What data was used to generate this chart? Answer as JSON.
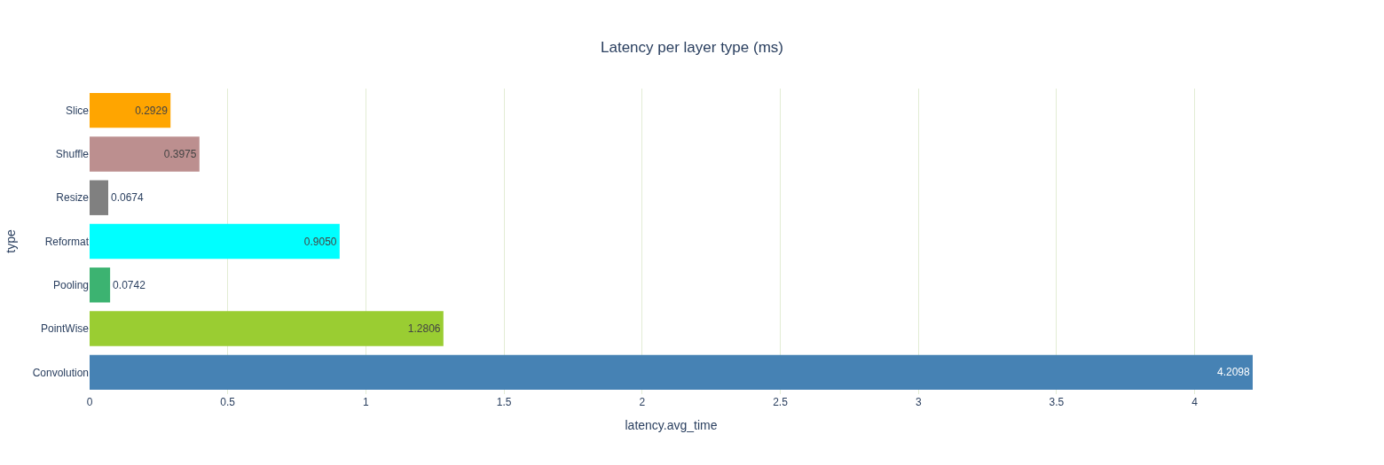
{
  "chart_data": {
    "type": "bar",
    "orientation": "horizontal",
    "title": "Latency per layer type (ms)",
    "xlabel": "latency.avg_time",
    "ylabel": "type",
    "categories": [
      "Slice",
      "Shuffle",
      "Resize",
      "Reformat",
      "Pooling",
      "PointWise",
      "Convolution"
    ],
    "values": [
      0.2929,
      0.3975,
      0.0674,
      0.905,
      0.0742,
      1.2806,
      4.2098
    ],
    "value_labels": [
      "0.2929",
      "0.3975",
      "0.0674",
      "0.9050",
      "0.0742",
      "1.2806",
      "4.2098"
    ],
    "colors": [
      "#ffa500",
      "#bc8f8f",
      "#808080",
      "#00ffff",
      "#3cb371",
      "#9acd32",
      "#4682b4"
    ],
    "xlim": [
      0,
      4.2098
    ],
    "xticks": [
      0,
      0.5,
      1,
      1.5,
      2,
      2.5,
      3,
      3.5,
      4
    ],
    "grid": "x"
  }
}
